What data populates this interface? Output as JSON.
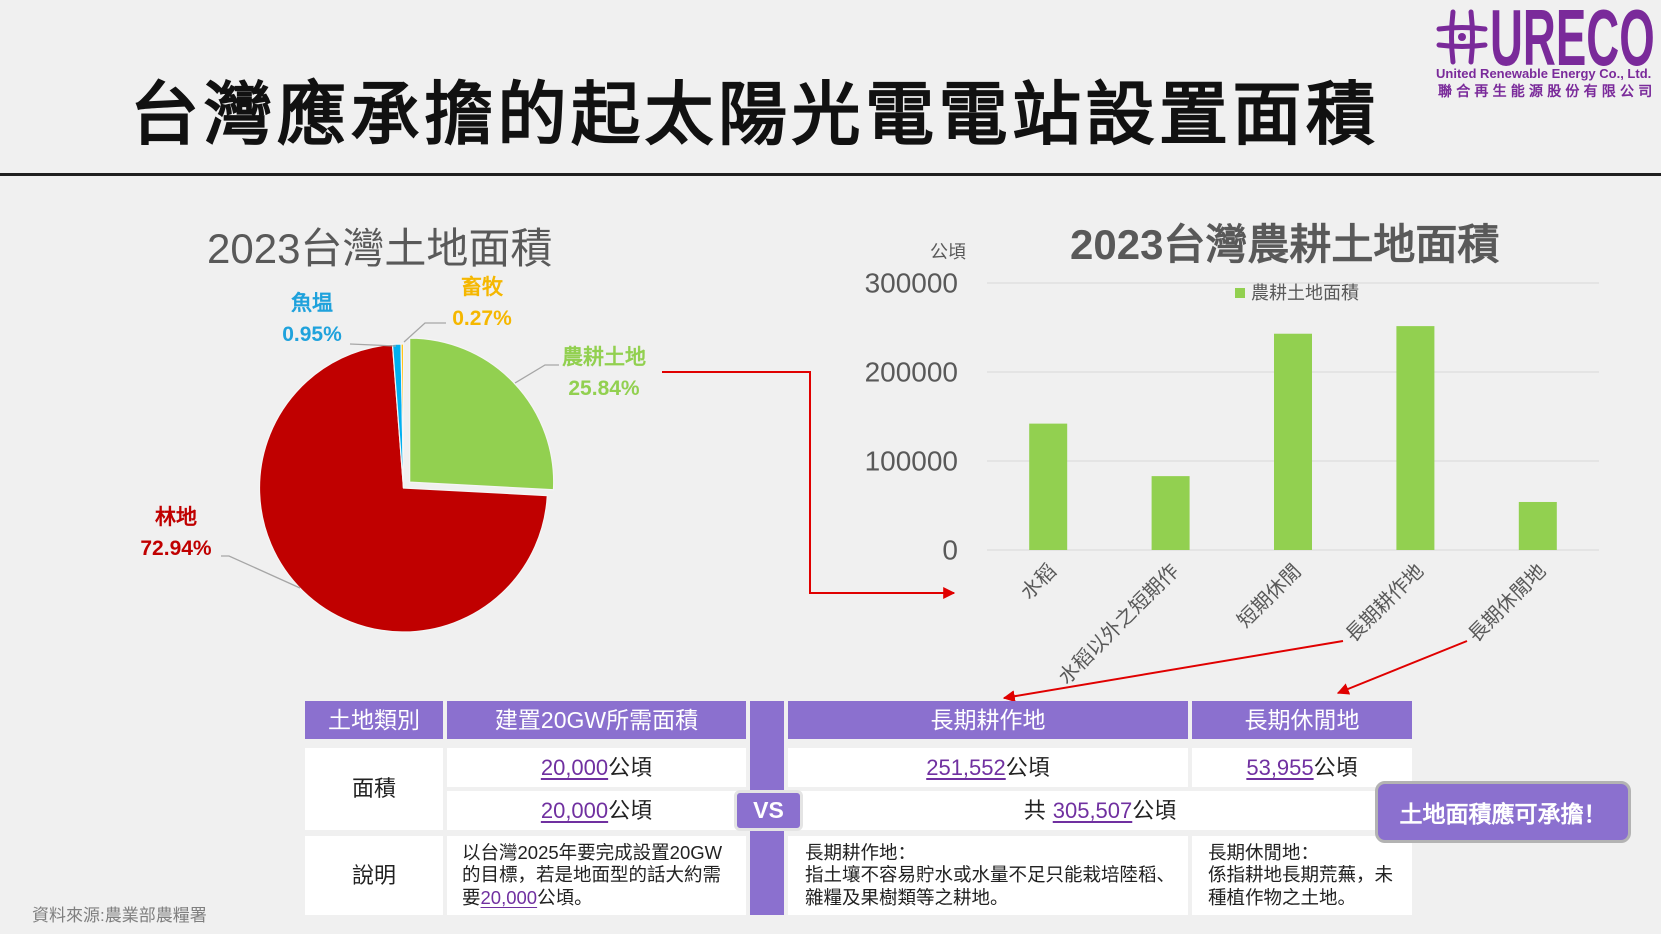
{
  "title": "台灣應承擔的起太陽光電電站設置面積",
  "theme": {
    "accent": "#8b70cf",
    "link": "#7030a0"
  },
  "logo": {
    "mark": "URECO",
    "english": "United Renewable Energy Co., Ltd.",
    "chinese": "聯合再生能源股份有限公司",
    "color": "#7a2a9a",
    "icon": "hash-cross-logo-icon"
  },
  "chart_data": [
    {
      "type": "pie",
      "title": "2023台灣土地面積",
      "exploded_slice": "農耕土地",
      "slices": [
        {
          "name": "農耕土地",
          "value": 25.84,
          "label": "25.84%",
          "color": "#92d050"
        },
        {
          "name": "林地",
          "value": 72.94,
          "label": "72.94%",
          "color": "#c00000"
        },
        {
          "name": "魚塭",
          "value": 0.95,
          "label": "0.95%",
          "color": "#00b0f0"
        },
        {
          "name": "畜牧",
          "value": 0.27,
          "label": "0.27%",
          "color": "#ffc000"
        }
      ]
    },
    {
      "type": "bar",
      "title": "2023台灣農耕土地面積",
      "xlabel": "",
      "ylabel": "公頃",
      "categories": [
        "水稻",
        "水稻以外之短期作",
        "短期休閒",
        "長期耕作地",
        "長期休閒地"
      ],
      "series": [
        {
          "name": "農耕土地面積",
          "values": [
            142000,
            83000,
            243000,
            251552,
            53955
          ],
          "color": "#92d050"
        }
      ],
      "ylim": [
        0,
        300000
      ],
      "yticks": [
        0,
        100000,
        200000,
        300000
      ],
      "grid": true,
      "legend": "top-center"
    }
  ],
  "table": {
    "headers": {
      "category": "土地類別",
      "required": "建置20GW所需面積",
      "cultivated": "長期耕作地",
      "fallow": "長期休閒地"
    },
    "area": {
      "label": "面積",
      "required_a": {
        "value": "20,000",
        "unit": "公頃"
      },
      "required_b": {
        "value": "20,000",
        "unit": "公頃"
      },
      "cultivated": {
        "value": "251,552",
        "unit": "公頃"
      },
      "fallow": {
        "value": "53,955",
        "unit": "公頃"
      },
      "total": {
        "prefix": "共",
        "value": "305,507",
        "unit": "公頃"
      }
    },
    "description": {
      "label": "說明",
      "required": {
        "before": "以台灣2025年要完成設置20GW的目標，若是地面型的話大約需要",
        "value": "20,000",
        "after": "公頃。"
      },
      "cultivated": {
        "title": "長期耕作地：",
        "text": "指土壤不容易貯水或水量不足只能栽培陸稻、雜糧及果樹類等之耕地。"
      },
      "fallow": {
        "title": "長期休閒地：",
        "text": "係指耕地長期荒蕪，未種植作物之土地。"
      }
    }
  },
  "vs_badge": "VS",
  "callout": "土地面積應可承擔！",
  "source": "資料來源:農業部農糧署"
}
